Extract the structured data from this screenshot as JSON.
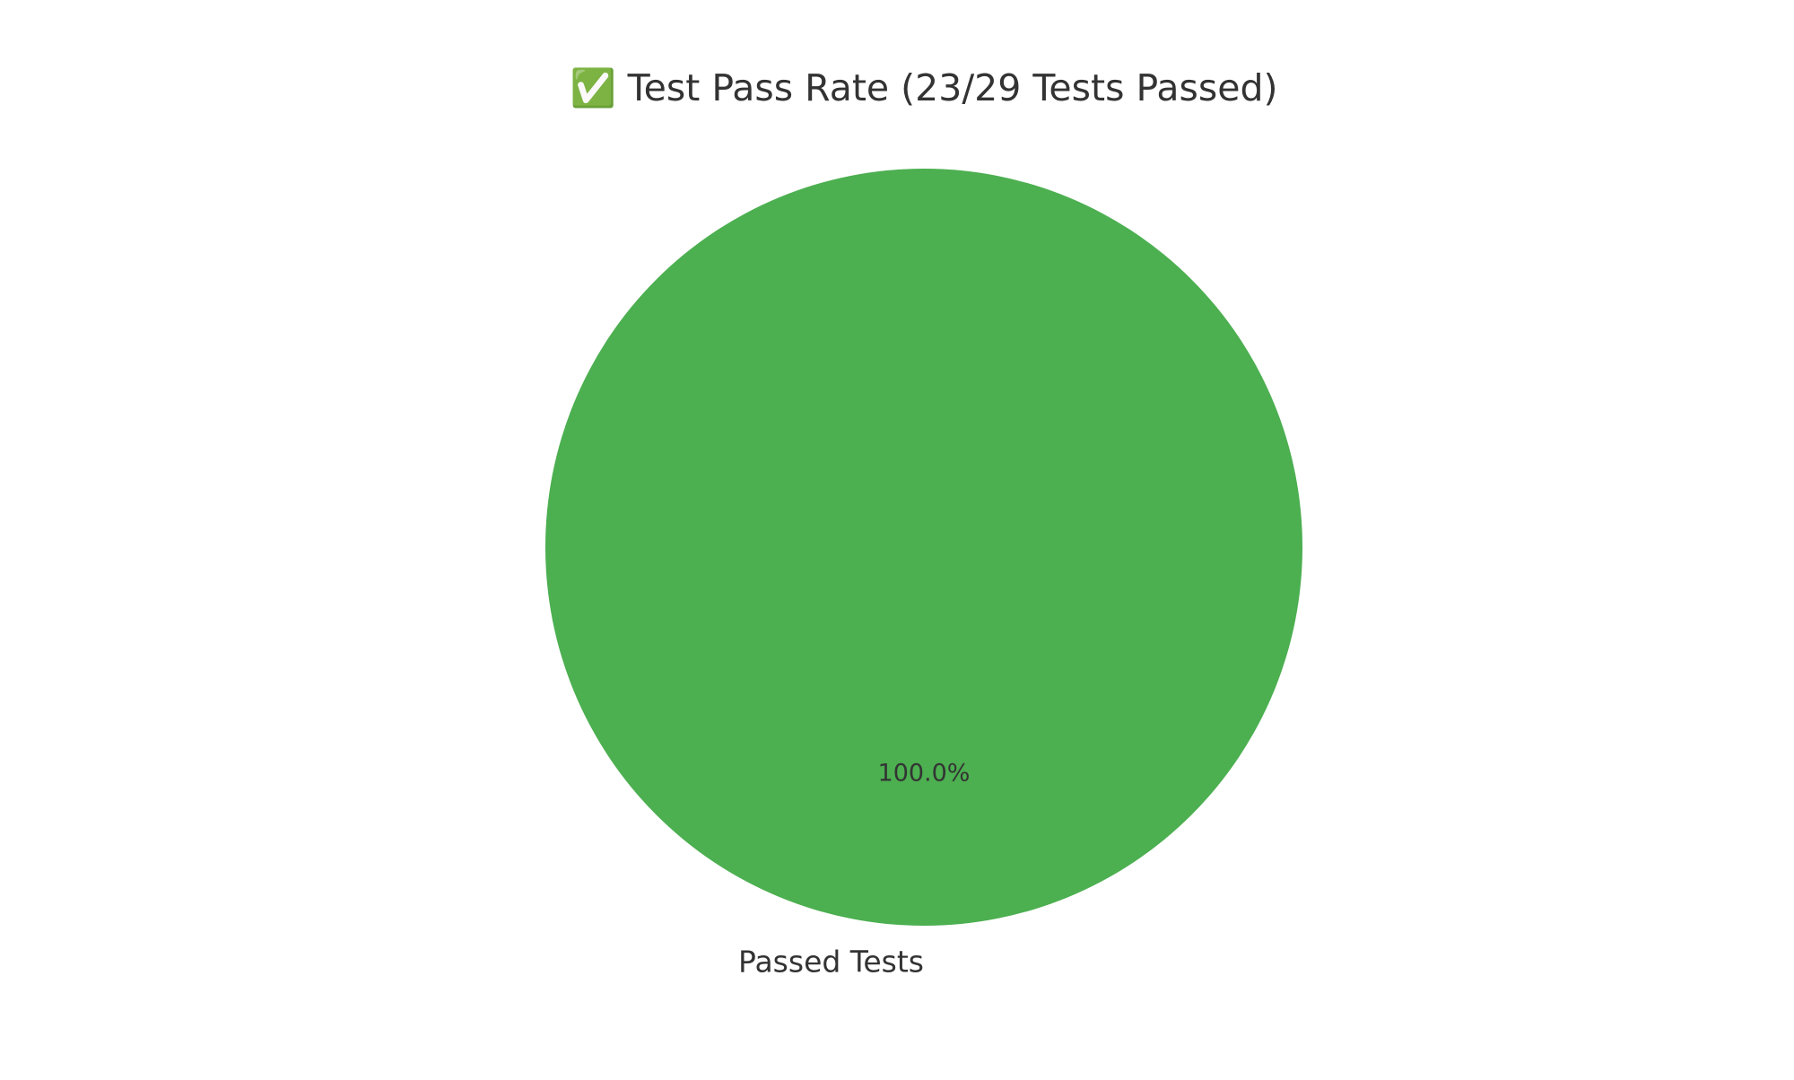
{
  "chart_data": {
    "type": "pie",
    "title": "✅ Test Pass Rate (23/29 Tests Passed)",
    "slices": [
      {
        "label": "Passed Tests",
        "value": 23,
        "percent_label": "100.0%",
        "color": "#4caf50"
      }
    ],
    "legend": "none"
  }
}
